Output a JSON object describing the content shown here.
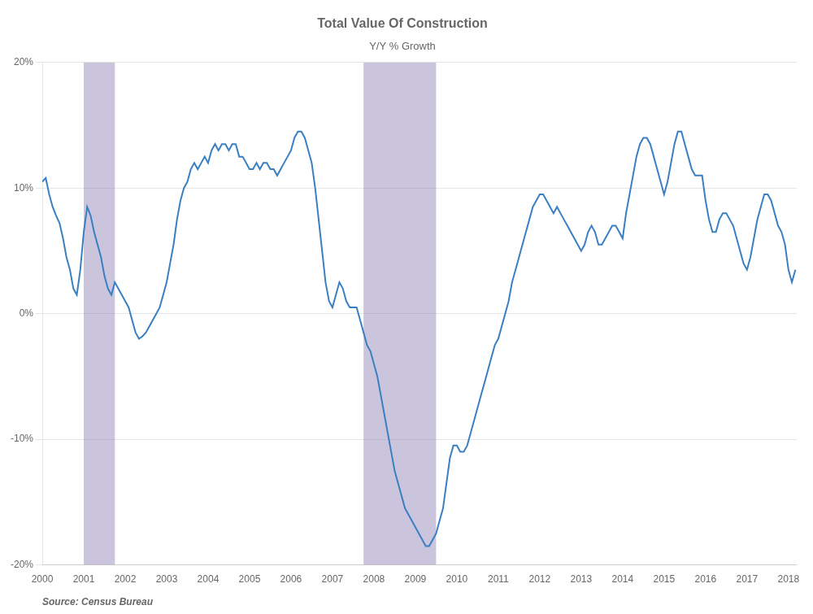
{
  "chart_data": {
    "type": "line",
    "title": "Total Value Of Construction",
    "subtitle": "Y/Y % Growth",
    "source": "Source: Census Bureau",
    "color": "#3a7fc1",
    "grid": true,
    "bands": {
      "color": "#7b6faa",
      "ranges": [
        [
          2001.0,
          2001.75
        ],
        [
          2007.75,
          2009.5
        ]
      ]
    },
    "xlim": [
      2000.0,
      2018.2
    ],
    "xticks": [
      2000,
      2001,
      2002,
      2003,
      2004,
      2005,
      2006,
      2007,
      2008,
      2009,
      2010,
      2011,
      2012,
      2013,
      2014,
      2015,
      2016,
      2017,
      2018
    ],
    "ylim": [
      -20,
      20
    ],
    "yticks": [
      {
        "value": -20,
        "label": "-20%"
      },
      {
        "value": -10,
        "label": "-10%"
      },
      {
        "value": 0,
        "label": "0%"
      },
      {
        "value": 10,
        "label": "10%"
      },
      {
        "value": 20,
        "label": "20%"
      }
    ],
    "x": [
      2000.0,
      2000.083,
      2000.167,
      2000.25,
      2000.333,
      2000.417,
      2000.5,
      2000.583,
      2000.667,
      2000.75,
      2000.833,
      2000.917,
      2001.0,
      2001.083,
      2001.167,
      2001.25,
      2001.333,
      2001.417,
      2001.5,
      2001.583,
      2001.667,
      2001.75,
      2001.833,
      2001.917,
      2002.0,
      2002.083,
      2002.167,
      2002.25,
      2002.333,
      2002.417,
      2002.5,
      2002.583,
      2002.667,
      2002.75,
      2002.833,
      2002.917,
      2003.0,
      2003.083,
      2003.167,
      2003.25,
      2003.333,
      2003.417,
      2003.5,
      2003.583,
      2003.667,
      2003.75,
      2003.833,
      2003.917,
      2004.0,
      2004.083,
      2004.167,
      2004.25,
      2004.333,
      2004.417,
      2004.5,
      2004.583,
      2004.667,
      2004.75,
      2004.833,
      2004.917,
      2005.0,
      2005.083,
      2005.167,
      2005.25,
      2005.333,
      2005.417,
      2005.5,
      2005.583,
      2005.667,
      2005.75,
      2005.833,
      2005.917,
      2006.0,
      2006.083,
      2006.167,
      2006.25,
      2006.333,
      2006.417,
      2006.5,
      2006.583,
      2006.667,
      2006.75,
      2006.833,
      2006.917,
      2007.0,
      2007.083,
      2007.167,
      2007.25,
      2007.333,
      2007.417,
      2007.5,
      2007.583,
      2007.667,
      2007.75,
      2007.833,
      2007.917,
      2008.0,
      2008.083,
      2008.167,
      2008.25,
      2008.333,
      2008.417,
      2008.5,
      2008.583,
      2008.667,
      2008.75,
      2008.833,
      2008.917,
      2009.0,
      2009.083,
      2009.167,
      2009.25,
      2009.333,
      2009.417,
      2009.5,
      2009.583,
      2009.667,
      2009.75,
      2009.833,
      2009.917,
      2010.0,
      2010.083,
      2010.167,
      2010.25,
      2010.333,
      2010.417,
      2010.5,
      2010.583,
      2010.667,
      2010.75,
      2010.833,
      2010.917,
      2011.0,
      2011.083,
      2011.167,
      2011.25,
      2011.333,
      2011.417,
      2011.5,
      2011.583,
      2011.667,
      2011.75,
      2011.833,
      2011.917,
      2012.0,
      2012.083,
      2012.167,
      2012.25,
      2012.333,
      2012.417,
      2012.5,
      2012.583,
      2012.667,
      2012.75,
      2012.833,
      2012.917,
      2013.0,
      2013.083,
      2013.167,
      2013.25,
      2013.333,
      2013.417,
      2013.5,
      2013.583,
      2013.667,
      2013.75,
      2013.833,
      2013.917,
      2014.0,
      2014.083,
      2014.167,
      2014.25,
      2014.333,
      2014.417,
      2014.5,
      2014.583,
      2014.667,
      2014.75,
      2014.833,
      2014.917,
      2015.0,
      2015.083,
      2015.167,
      2015.25,
      2015.333,
      2015.417,
      2015.5,
      2015.583,
      2015.667,
      2015.75,
      2015.833,
      2015.917,
      2016.0,
      2016.083,
      2016.167,
      2016.25,
      2016.333,
      2016.417,
      2016.5,
      2016.583,
      2016.667,
      2016.75,
      2016.833,
      2016.917,
      2017.0,
      2017.083,
      2017.167,
      2017.25,
      2017.333,
      2017.417,
      2017.5,
      2017.583,
      2017.667,
      2017.75,
      2017.833,
      2017.917,
      2018.0,
      2018.083,
      2018.167
    ],
    "values": [
      10.5,
      10.8,
      9.5,
      8.5,
      7.8,
      7.2,
      6.0,
      4.5,
      3.5,
      2.0,
      1.5,
      3.5,
      6.5,
      8.5,
      7.8,
      6.5,
      5.5,
      4.5,
      3.0,
      2.0,
      1.5,
      2.5,
      2.0,
      1.5,
      1.0,
      0.5,
      -0.5,
      -1.5,
      -2.0,
      -1.8,
      -1.5,
      -1.0,
      -0.5,
      0.0,
      0.5,
      1.5,
      2.5,
      4.0,
      5.5,
      7.5,
      9.0,
      10.0,
      10.5,
      11.5,
      12.0,
      11.5,
      12.0,
      12.5,
      12.0,
      13.0,
      13.5,
      13.0,
      13.5,
      13.5,
      13.0,
      13.5,
      13.5,
      12.5,
      12.5,
      12.0,
      11.5,
      11.5,
      12.0,
      11.5,
      12.0,
      12.0,
      11.5,
      11.5,
      11.0,
      11.5,
      12.0,
      12.5,
      13.0,
      14.0,
      14.5,
      14.5,
      14.0,
      13.0,
      12.0,
      10.0,
      7.5,
      5.0,
      2.5,
      1.0,
      0.5,
      1.5,
      2.5,
      2.0,
      1.0,
      0.5,
      0.5,
      0.5,
      -0.5,
      -1.5,
      -2.5,
      -3.0,
      -4.0,
      -5.0,
      -6.5,
      -8.0,
      -9.5,
      -11.0,
      -12.5,
      -13.5,
      -14.5,
      -15.5,
      -16.0,
      -16.5,
      -17.0,
      -17.5,
      -18.0,
      -18.5,
      -18.5,
      -18.0,
      -17.5,
      -16.5,
      -15.5,
      -13.5,
      -11.5,
      -10.5,
      -10.5,
      -11.0,
      -11.0,
      -10.5,
      -9.5,
      -8.5,
      -7.5,
      -6.5,
      -5.5,
      -4.5,
      -3.5,
      -2.5,
      -2.0,
      -1.0,
      0.0,
      1.0,
      2.5,
      3.5,
      4.5,
      5.5,
      6.5,
      7.5,
      8.5,
      9.0,
      9.5,
      9.5,
      9.0,
      8.5,
      8.0,
      8.5,
      8.0,
      7.5,
      7.0,
      6.5,
      6.0,
      5.5,
      5.0,
      5.5,
      6.5,
      7.0,
      6.5,
      5.5,
      5.5,
      6.0,
      6.5,
      7.0,
      7.0,
      6.5,
      6.0,
      8.0,
      9.5,
      11.0,
      12.5,
      13.5,
      14.0,
      14.0,
      13.5,
      12.5,
      11.5,
      10.5,
      9.5,
      10.5,
      12.0,
      13.5,
      14.5,
      14.5,
      13.5,
      12.5,
      11.5,
      11.0,
      11.0,
      11.0,
      9.0,
      7.5,
      6.5,
      6.5,
      7.5,
      8.0,
      8.0,
      7.5,
      7.0,
      6.0,
      5.0,
      4.0,
      3.5,
      4.5,
      6.0,
      7.5,
      8.5,
      9.5,
      9.5,
      9.0,
      8.0,
      7.0,
      6.5,
      5.5,
      3.5,
      2.5,
      3.5
    ]
  }
}
